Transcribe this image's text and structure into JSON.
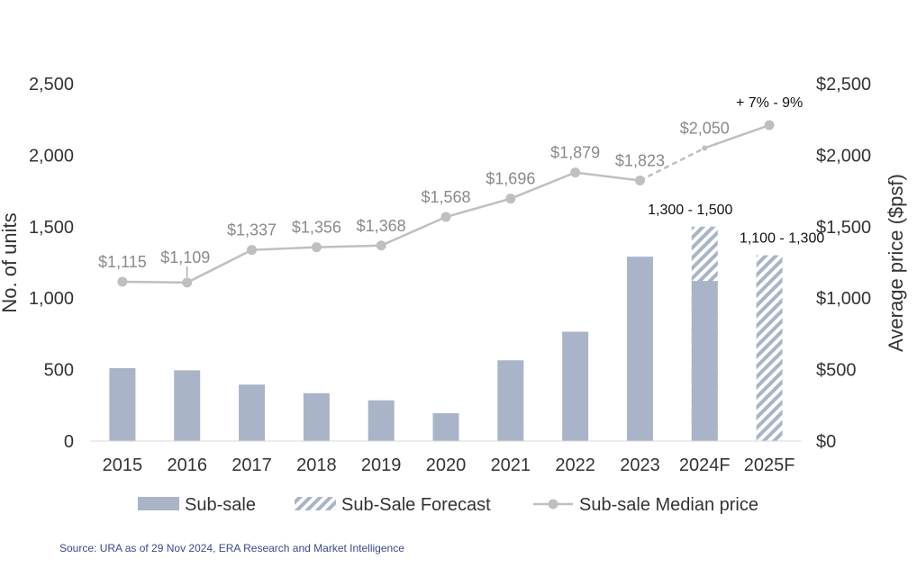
{
  "chart_data": {
    "type": "bar",
    "categories": [
      "2015",
      "2016",
      "2017",
      "2018",
      "2019",
      "2020",
      "2021",
      "2022",
      "2023",
      "2024F",
      "2025F"
    ],
    "series": [
      {
        "name": "Sub-sale",
        "kind": "bar",
        "axis": "left",
        "values": [
          510,
          495,
          395,
          335,
          285,
          195,
          565,
          765,
          1290,
          1120,
          null
        ]
      },
      {
        "name": "Sub-Sale Forecast",
        "kind": "hatched-bar",
        "axis": "left",
        "values": [
          null,
          null,
          null,
          null,
          null,
          null,
          null,
          null,
          null,
          1500,
          1300
        ],
        "range_labels": [
          null,
          null,
          null,
          null,
          null,
          null,
          null,
          null,
          null,
          "1,300 - 1,500",
          "1,100 - 1,300"
        ]
      },
      {
        "name": "Sub-sale Median price",
        "kind": "line",
        "axis": "right",
        "values": [
          1115,
          1109,
          1337,
          1356,
          1368,
          1568,
          1696,
          1879,
          1823,
          2050,
          2210
        ],
        "labels": [
          "$1,115",
          "$1,109",
          "$1,337",
          "$1,356",
          "$1,368",
          "$1,568",
          "$1,696",
          "$1,879",
          "$1,823",
          "$2,050",
          "+ 7% - 9%"
        ]
      }
    ],
    "ylabel": "No. of units",
    "y2label": "Average price ($psf)",
    "ylim": [
      0,
      2500
    ],
    "y2lim": [
      0,
      2500
    ],
    "y_ticks": [
      "0",
      "500",
      "1,000",
      "1,500",
      "2,000",
      "2,500"
    ],
    "y2_ticks": [
      "$0",
      "$500",
      "$1,000",
      "$1,500",
      "$2,000",
      "$2,500"
    ],
    "grid": false,
    "legend_position": "bottom",
    "colors": {
      "bar": "#aab4c8",
      "hatch": "#aab4c8",
      "line": "#bfbfbf",
      "price_label": "#8a8a8a"
    }
  },
  "source": "Source: URA as of 29 Nov 2024, ERA Research and Market Intelligence"
}
